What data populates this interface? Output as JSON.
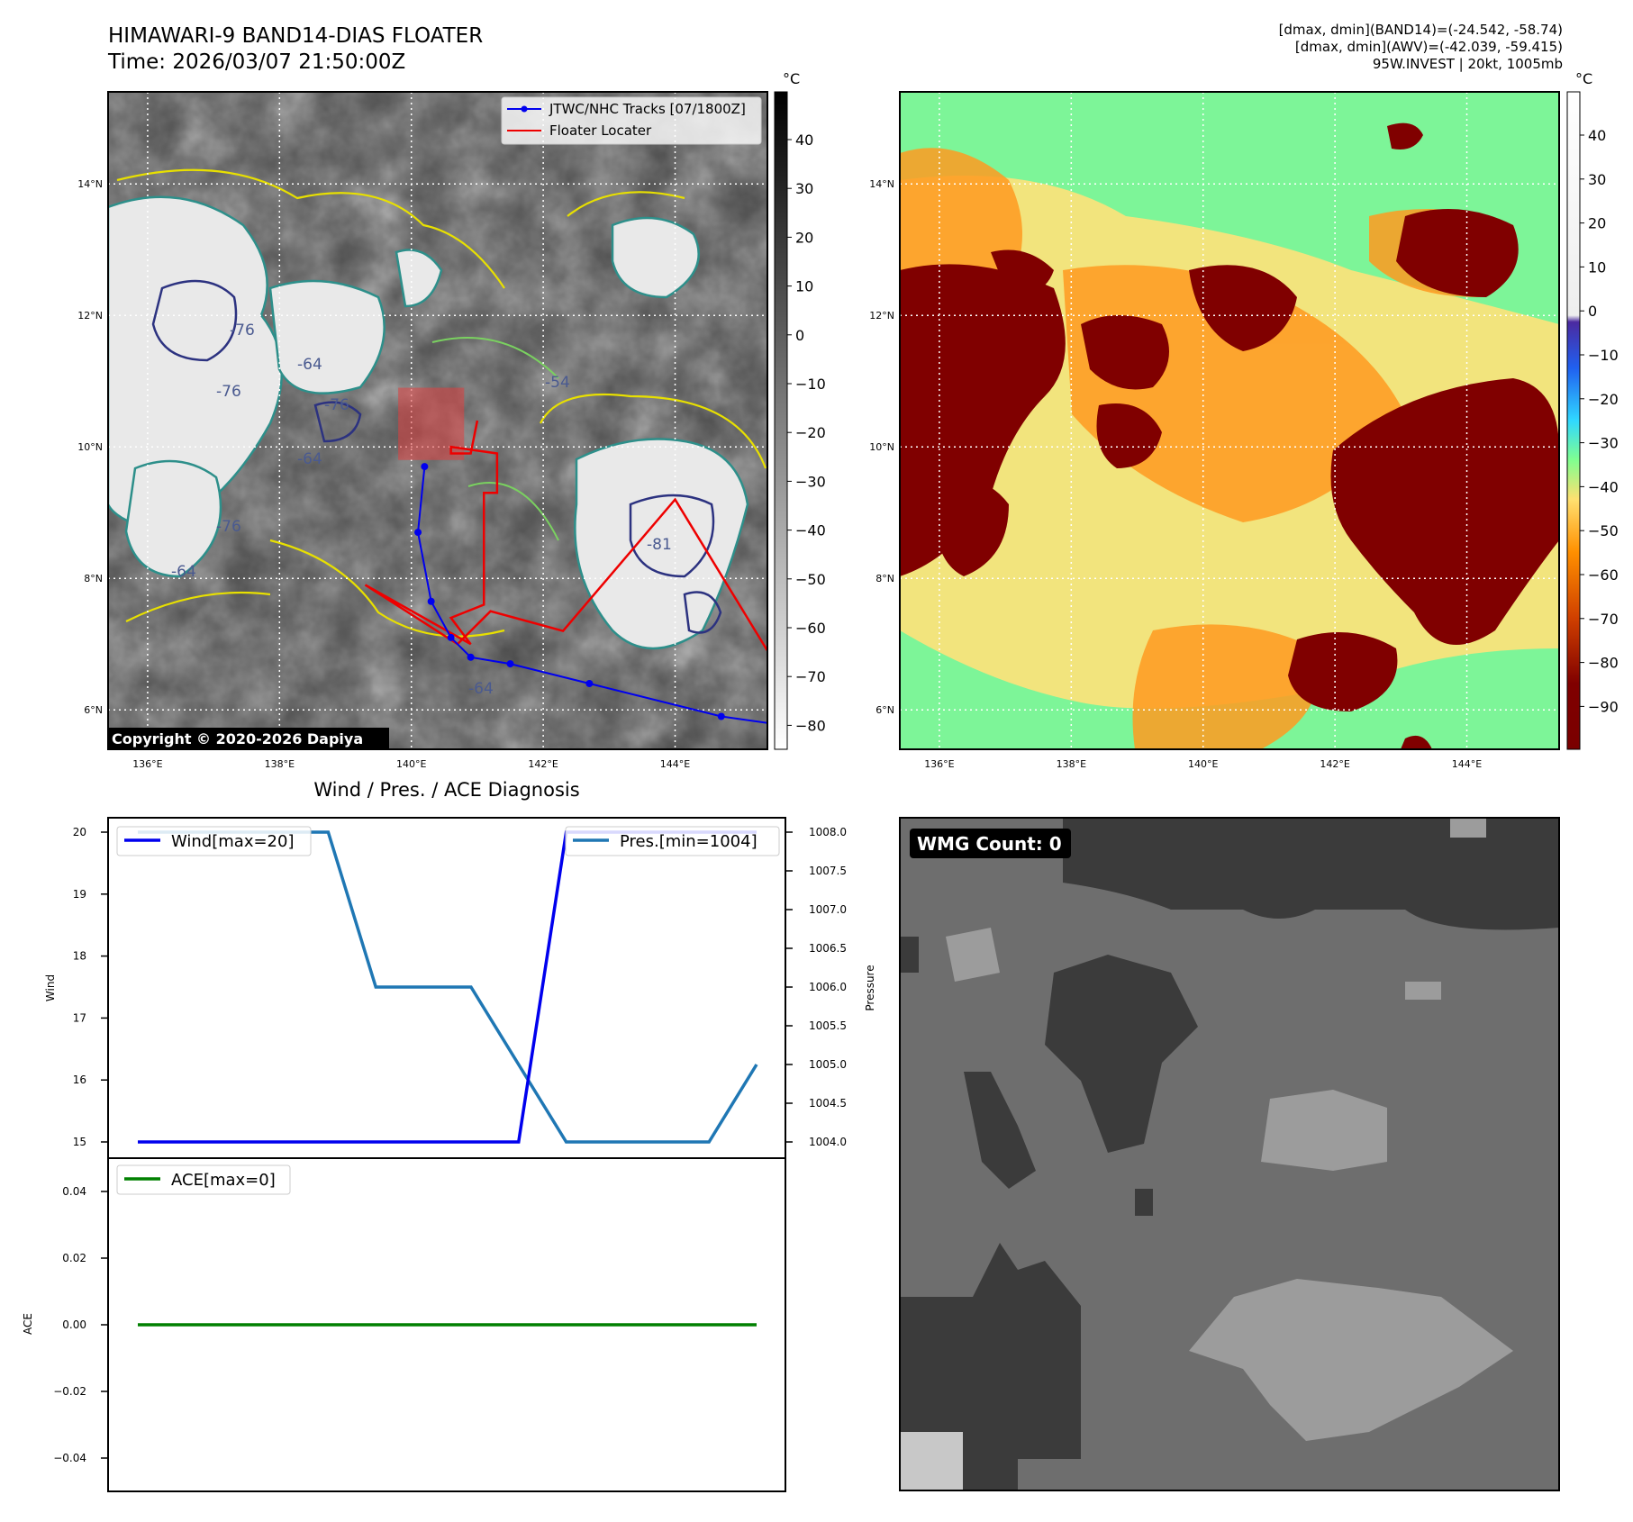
{
  "header": {
    "title": "HIMAWARI-9 BAND14-DIAS FLOATER",
    "time": "Time: 2026/03/07 21:50:00Z",
    "meta_lines": [
      "[dmax, dmin](BAND14)=(-24.542, -58.74)",
      "[dmax, dmin](AWV)=(-42.039, -59.415)",
      "95W.INVEST | 20kt, 1005mb"
    ]
  },
  "colors": {
    "track": "#0000ee",
    "locater": "#ee0000",
    "wind": "#0000ee",
    "pressure": "#1f77b4",
    "ace": "#008000"
  },
  "maps": {
    "lon_ticks": [
      "136°E",
      "138°E",
      "140°E",
      "142°E",
      "144°E"
    ],
    "lat_ticks": [
      "14°N",
      "12°N",
      "10°N",
      "8°N",
      "6°N"
    ],
    "lon_range": [
      135.4,
      145.4
    ],
    "lat_range": [
      5.4,
      15.4
    ],
    "copyright": "Copyright © 2020-2026 Dapiya",
    "unit": "°C",
    "legend": [
      "JTWC/NHC Tracks [07/1800Z]",
      "Floater Locater"
    ],
    "contour_labels": [
      "-76",
      "-64",
      "-76",
      "-76",
      "-64",
      "-64",
      "-54",
      "-64",
      "-81",
      "-64",
      "-76",
      "-64",
      "-54"
    ],
    "band14_colorbar_ticks": [
      "40",
      "30",
      "20",
      "10",
      "0",
      "−10",
      "−20",
      "−30",
      "−40",
      "−50",
      "−60",
      "−70",
      "−80"
    ],
    "awv_colorbar_ticks": [
      "40",
      "30",
      "20",
      "10",
      "0",
      "−10",
      "−20",
      "−30",
      "−40",
      "−50",
      "−60",
      "−70",
      "−80",
      "−90"
    ],
    "track_points": [
      {
        "lon": 140.2,
        "lat": 9.7
      },
      {
        "lon": 140.1,
        "lat": 8.7
      },
      {
        "lon": 140.3,
        "lat": 7.65
      },
      {
        "lon": 140.6,
        "lat": 7.1
      },
      {
        "lon": 140.9,
        "lat": 6.8
      },
      {
        "lon": 141.5,
        "lat": 6.7
      },
      {
        "lon": 142.7,
        "lat": 6.4
      },
      {
        "lon": 144.7,
        "lat": 5.9
      },
      {
        "lon": 145.4,
        "lat": 5.8
      }
    ],
    "locater_path": [
      {
        "lon": 141.0,
        "lat": 10.4
      },
      {
        "lon": 140.9,
        "lat": 9.9
      },
      {
        "lon": 140.6,
        "lat": 9.9
      },
      {
        "lon": 140.6,
        "lat": 10.0
      },
      {
        "lon": 141.3,
        "lat": 9.9
      },
      {
        "lon": 141.3,
        "lat": 9.3
      },
      {
        "lon": 141.1,
        "lat": 9.3
      },
      {
        "lon": 141.1,
        "lat": 7.6
      },
      {
        "lon": 140.6,
        "lat": 7.4
      },
      {
        "lon": 140.9,
        "lat": 7.0
      },
      {
        "lon": 139.3,
        "lat": 7.9
      },
      {
        "lon": 140.7,
        "lat": 7.0
      },
      {
        "lon": 141.2,
        "lat": 7.5
      },
      {
        "lon": 142.3,
        "lat": 7.2
      },
      {
        "lon": 144.0,
        "lat": 9.2
      },
      {
        "lon": 145.4,
        "lat": 6.9
      }
    ],
    "locater_box": {
      "lon": [
        139.8,
        140.8
      ],
      "lat": [
        9.8,
        10.9
      ]
    }
  },
  "chart_data": [
    {
      "type": "line",
      "title": "Wind / Pres. / ACE Diagnosis",
      "x": [
        0,
        1,
        2,
        3,
        4,
        5,
        6,
        7,
        8,
        9,
        10,
        11,
        12,
        13
      ],
      "series": [
        {
          "name": "Wind[max=20]",
          "axis": "left",
          "values": [
            15,
            15,
            15,
            15,
            15,
            15,
            15,
            15,
            15,
            20,
            20,
            20,
            20,
            20
          ]
        },
        {
          "name": "Pres.[min=1004]",
          "axis": "right",
          "values": [
            1008,
            1008,
            1008,
            1008,
            1008,
            1006,
            1006,
            1006,
            1005,
            1004,
            1004,
            1004,
            1004,
            1005
          ]
        }
      ],
      "ylabel": "Wind",
      "ylabel_right": "Pressure",
      "ylim": [
        15,
        20
      ],
      "ylim_right": [
        1004,
        1008
      ],
      "yticks": [
        "15",
        "16",
        "17",
        "18",
        "19",
        "20"
      ],
      "yticks_right": [
        "1004.0",
        "1004.5",
        "1005.0",
        "1005.5",
        "1006.0",
        "1006.5",
        "1007.0",
        "1007.5",
        "1008.0"
      ],
      "legend": [
        "top-left",
        "top-right"
      ]
    },
    {
      "type": "line",
      "x": [
        0,
        13
      ],
      "series": [
        {
          "name": "ACE[max=0]",
          "values": [
            0,
            0
          ]
        }
      ],
      "ylabel": "ACE",
      "ylim": [
        -0.05,
        0.05
      ],
      "yticks": [
        "0.04",
        "0.02",
        "0.00",
        "−0.02",
        "−0.04"
      ],
      "legend": "top-left"
    }
  ],
  "wmg": {
    "label": "WMG Count: 0"
  }
}
